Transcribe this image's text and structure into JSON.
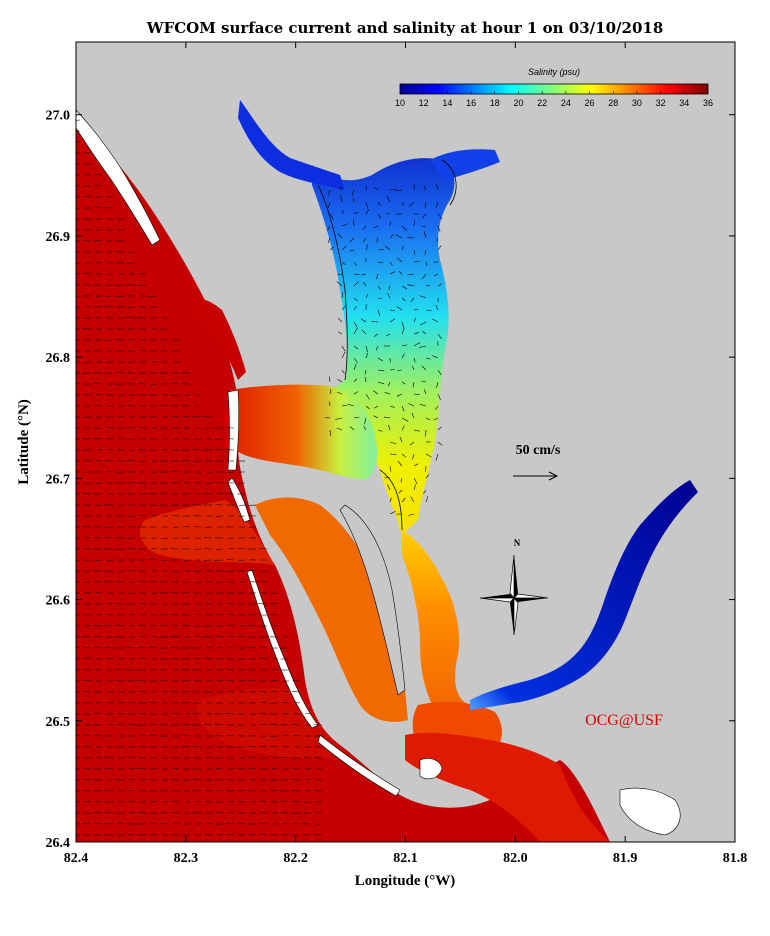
{
  "title": "WFCOM surface current and salinity at hour 1 on 03/10/2018",
  "axes": {
    "xlabel": "Longitude (°W)",
    "ylabel": "Latitude (°N)",
    "x_ticks": [
      "82.4",
      "82.3",
      "82.2",
      "82.1",
      "82.0",
      "81.9",
      "81.8"
    ],
    "y_ticks": [
      "26.4",
      "26.5",
      "26.6",
      "26.7",
      "26.8",
      "26.9",
      "27.0"
    ],
    "xlim": [
      82.4,
      81.8
    ],
    "ylim": [
      26.4,
      27.06
    ]
  },
  "colorbar": {
    "title": "Salinity (psu)",
    "labels": [
      "10",
      "12",
      "14",
      "16",
      "18",
      "20",
      "22",
      "24",
      "26",
      "28",
      "30",
      "32",
      "34",
      "36"
    ],
    "range": [
      10,
      36
    ]
  },
  "scale_label": "50 cm/s",
  "north_label": "N",
  "credit": "OCG@USF",
  "colors": {
    "land": "#c8c8c8",
    "dry": "#ffffff",
    "high_salinity": "#c40000",
    "credit": "#e00000"
  },
  "chart_data": {
    "type": "heatmap",
    "title": "WFCOM surface current and salinity at hour 1 on 03/10/2018",
    "xlabel": "Longitude (°W)",
    "ylabel": "Latitude (°N)",
    "variable": "Salinity (psu)",
    "value_range": [
      10,
      36
    ],
    "vector_field": "surface current",
    "vector_scale": "50 cm/s"
  }
}
